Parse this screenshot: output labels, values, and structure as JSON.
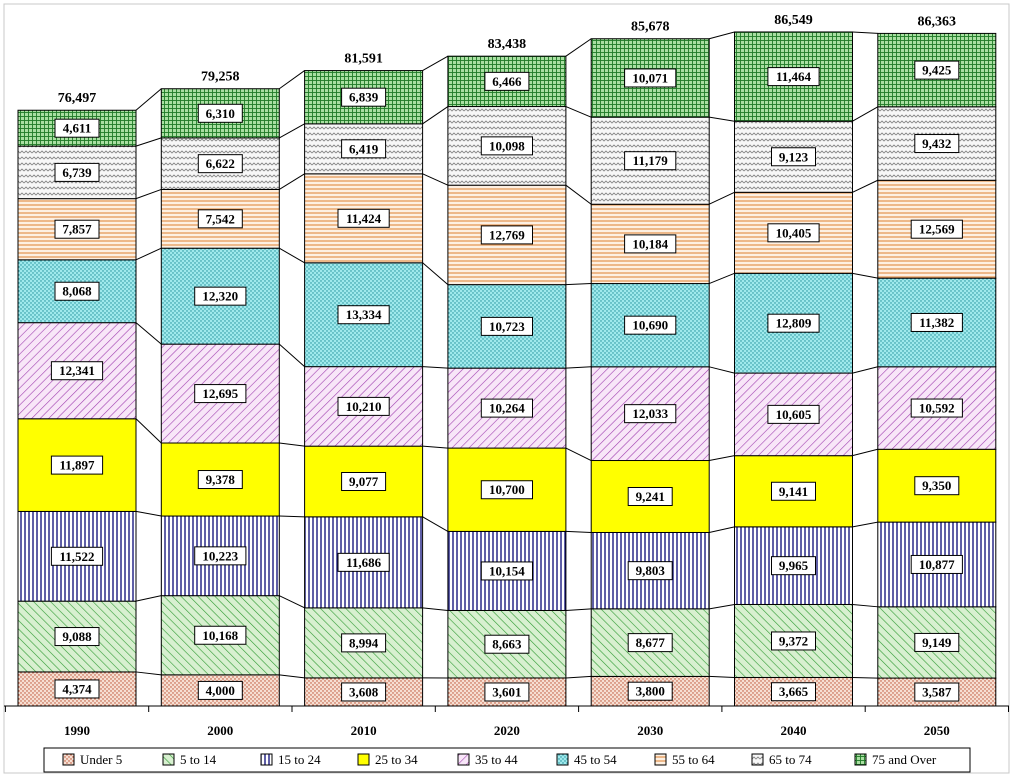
{
  "chart_data": {
    "type": "bar",
    "stacked": true,
    "title": "",
    "xlabel": "",
    "ylabel": "",
    "categories": [
      "1990",
      "2000",
      "2010",
      "2020",
      "2030",
      "2040",
      "2050"
    ],
    "totals": [
      "76,497",
      "79,258",
      "81,591",
      "83,438",
      "85,678",
      "86,549",
      "86,363"
    ],
    "ylim": [
      0,
      88000
    ],
    "grid": false,
    "legend_position": "bottom",
    "series": [
      {
        "name": "Under 5",
        "color": "#f0d8c8",
        "pattern": "dots",
        "values": [
          4374,
          4000,
          3608,
          3601,
          3800,
          3665,
          3587
        ],
        "labels": [
          "4,374",
          "4,000",
          "3,608",
          "3,601",
          "3,800",
          "3,665",
          "3,587"
        ]
      },
      {
        "name": "5 to 14",
        "color": "#cfecc5",
        "pattern": "diag-green",
        "values": [
          9088,
          10168,
          8994,
          8663,
          8677,
          9372,
          9149
        ],
        "labels": [
          "9,088",
          "10,168",
          "8,994",
          "8,663",
          "8,677",
          "9,372",
          "9,149"
        ]
      },
      {
        "name": "15 to 24",
        "color": "#ffffff",
        "pattern": "vlines-navy",
        "values": [
          11522,
          10223,
          11686,
          10154,
          9803,
          9965,
          10877
        ],
        "labels": [
          "11,522",
          "10,223",
          "11,686",
          "10,154",
          "9,803",
          "9,965",
          "10,877"
        ]
      },
      {
        "name": "25 to 34",
        "color": "#ffff00",
        "pattern": "solid",
        "values": [
          11897,
          9378,
          9077,
          10700,
          9241,
          9141,
          9350
        ],
        "labels": [
          "11,897",
          "9,378",
          "9,077",
          "10,700",
          "9,241",
          "9,141",
          "9,350"
        ]
      },
      {
        "name": "35 to 44",
        "color": "#f0d6f0",
        "pattern": "diag-purple",
        "values": [
          12341,
          12695,
          10210,
          10264,
          12033,
          10605,
          10592
        ],
        "labels": [
          "12,341",
          "12,695",
          "10,210",
          "10,264",
          "12,033",
          "10,605",
          "10,592"
        ]
      },
      {
        "name": "45 to 54",
        "color": "#a8ecec",
        "pattern": "dots-teal",
        "values": [
          8068,
          12320,
          13334,
          10723,
          10690,
          12809,
          11382
        ],
        "labels": [
          "8,068",
          "12,320",
          "13,334",
          "10,723",
          "10,690",
          "12,809",
          "11,382"
        ]
      },
      {
        "name": "55 to 64",
        "color": "#fde9d4",
        "pattern": "hlines-orange",
        "values": [
          7857,
          7542,
          11424,
          12769,
          10184,
          10405,
          12569
        ],
        "labels": [
          "7,857",
          "7,542",
          "11,424",
          "12,769",
          "10,184",
          "10,405",
          "12,569"
        ]
      },
      {
        "name": "65 to 74",
        "color": "#f4f4f4",
        "pattern": "waves-gray",
        "values": [
          6739,
          6622,
          6419,
          10098,
          11179,
          9123,
          9432
        ],
        "labels": [
          "6,739",
          "6,622",
          "6,419",
          "10,098",
          "11,179",
          "9,123",
          "9,432"
        ]
      },
      {
        "name": "75 and Over",
        "color": "#a8dca0",
        "pattern": "grid-green",
        "values": [
          4611,
          6310,
          6839,
          6466,
          10071,
          11464,
          9425
        ],
        "labels": [
          "4,611",
          "6,310",
          "6,839",
          "6,466",
          "10,071",
          "11,464",
          "9,425"
        ]
      }
    ]
  }
}
